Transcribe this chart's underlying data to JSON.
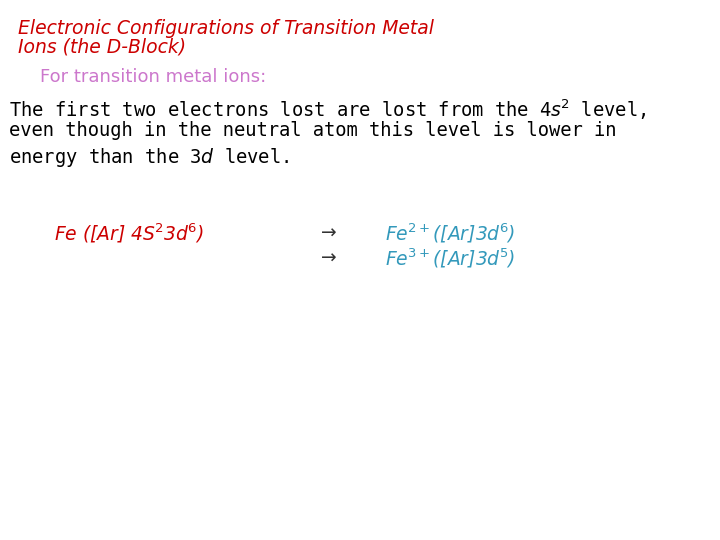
{
  "bg_color": "#ffffff",
  "title_color": "#cc0000",
  "subtitle_color": "#cc77cc",
  "body_color": "#000000",
  "fe_color": "#cc0000",
  "arrow_color": "#333333",
  "product_color": "#3399bb",
  "title_line1": "Electronic Configurations of Transition Metal",
  "title_line2": "Ions (the D-Block)",
  "subtitle": "For transition metal ions:",
  "body_line1": "The first two electrons lost are lost from the 4$s$$^{2}$ level,",
  "body_line2": "even though in the neutral atom this level is lower in",
  "body_line3": "energy than the 3$d$ level.",
  "fe_text": "Fe ([Ar] 4S$^{2}$3$d$$^{6}$)",
  "prod1_text": "Fe$^{2+}$([Ar]3$d$$^{6}$)",
  "prod2_text": "Fe$^{3+}$([Ar]3$d$$^{5}$)"
}
